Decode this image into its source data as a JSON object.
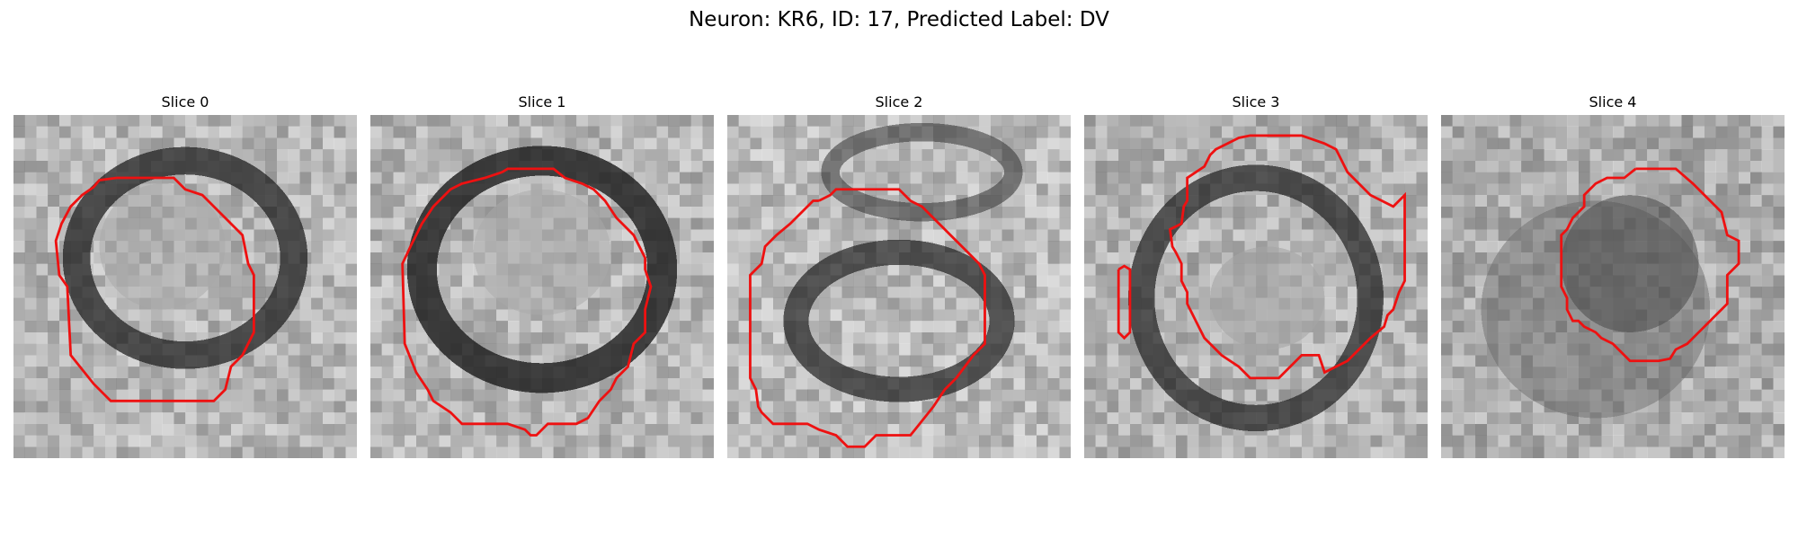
{
  "figure": {
    "title": "Neuron: KR6, ID: 17, Predicted Label: DV"
  },
  "panels": [
    {
      "title": "Slice 0",
      "icon": "grayscale-microscopy-image"
    },
    {
      "title": "Slice 1",
      "icon": "grayscale-microscopy-image"
    },
    {
      "title": "Slice 2",
      "icon": "grayscale-microscopy-image"
    },
    {
      "title": "Slice 3",
      "icon": "grayscale-microscopy-image"
    },
    {
      "title": "Slice 4",
      "icon": "grayscale-microscopy-image"
    }
  ],
  "colors": {
    "contour": "#ee1111"
  }
}
